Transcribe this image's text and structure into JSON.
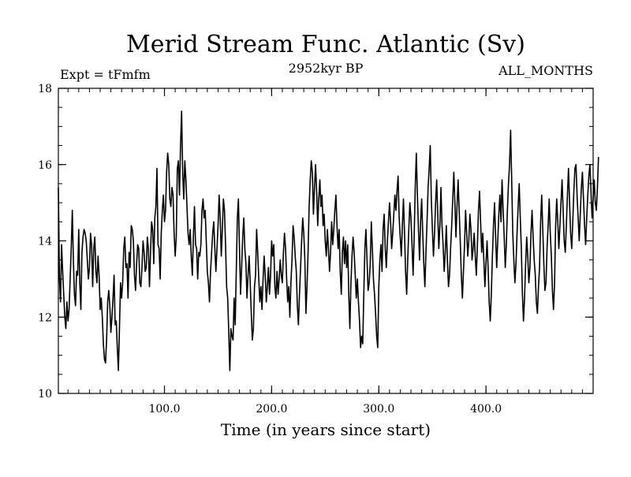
{
  "chart_data": {
    "type": "line",
    "title": "Merid Stream Func. Atlantic (Sv)",
    "subtitle_left": "Expt = tFmfm",
    "subtitle_center": "2952kyr BP",
    "subtitle_right": "ALL_MONTHS",
    "xlabel": "Time (in years since start)",
    "ylabel": "",
    "xlim": [
      1,
      500
    ],
    "ylim": [
      10,
      18
    ],
    "x_ticks": [
      100,
      200,
      300,
      400
    ],
    "x_tick_labels": [
      "100.0",
      "200.0",
      "300.0",
      "400.0"
    ],
    "y_ticks": [
      10,
      12,
      14,
      16,
      18
    ],
    "y_tick_labels": [
      "10",
      "12",
      "14",
      "16",
      "18"
    ],
    "grid": false,
    "series": [
      {
        "name": "Merid Stream Func. Atlantic",
        "x_start": 1,
        "x_step": 1,
        "values": [
          15.4,
          13.0,
          12.4,
          13.9,
          13.2,
          12.6,
          12.0,
          11.7,
          12.4,
          11.9,
          12.2,
          13.0,
          13.8,
          14.8,
          13.5,
          12.6,
          12.3,
          13.2,
          13.1,
          14.3,
          12.9,
          12.2,
          13.7,
          14.1,
          14.3,
          14.2,
          14.0,
          13.5,
          13.0,
          13.3,
          14.2,
          13.9,
          12.8,
          13.8,
          14.1,
          13.2,
          12.9,
          13.6,
          13.1,
          12.2,
          12.5,
          12.0,
          11.3,
          10.9,
          10.8,
          11.4,
          12.4,
          12.7,
          12.3,
          11.6,
          12.0,
          12.5,
          13.1,
          11.8,
          11.9,
          11.2,
          10.6,
          11.7,
          12.9,
          12.5,
          12.9,
          13.8,
          14.1,
          13.3,
          13.4,
          12.5,
          13.7,
          13.3,
          14.4,
          14.3,
          14.0,
          13.1,
          12.7,
          13.4,
          13.9,
          13.8,
          12.9,
          12.8,
          13.3,
          14.0,
          13.7,
          13.2,
          13.3,
          14.1,
          13.8,
          12.8,
          13.7,
          14.5,
          14.3,
          13.4,
          14.6,
          14.9,
          15.9,
          13.9,
          13.8,
          13.0,
          14.2,
          14.8,
          15.2,
          14.5,
          14.8,
          15.8,
          16.3,
          16.0,
          15.1,
          14.9,
          15.4,
          15.2,
          14.2,
          13.6,
          14.1,
          15.9,
          16.1,
          15.2,
          16.5,
          17.4,
          15.8,
          15.1,
          16.1,
          15.6,
          14.9,
          14.2,
          13.9,
          14.3,
          13.6,
          13.1,
          14.1,
          14.9,
          13.9,
          13.8,
          13.0,
          13.7,
          13.6,
          13.9,
          14.8,
          15.1,
          14.6,
          14.8,
          14.0,
          13.2,
          12.9,
          12.4,
          13.2,
          13.7,
          14.2,
          14.5,
          13.8,
          13.2,
          13.8,
          14.4,
          15.2,
          14.6,
          13.6,
          14.3,
          15.1,
          14.8,
          13.9,
          12.8,
          12.5,
          11.6,
          10.6,
          11.7,
          11.5,
          11.4,
          12.5,
          11.8,
          13.2,
          14.6,
          15.1,
          13.8,
          12.6,
          13.3,
          14.1,
          14.6,
          13.8,
          13.4,
          12.5,
          13.1,
          13.6,
          12.9,
          12.1,
          11.4,
          11.7,
          12.8,
          13.1,
          14.3,
          13.7,
          13.0,
          12.4,
          12.8,
          12.2,
          13.0,
          13.6,
          13.1,
          12.4,
          12.8,
          13.3,
          12.6,
          13.1,
          14.0,
          13.6,
          13.9,
          12.8,
          12.5,
          13.2,
          12.6,
          13.0,
          13.5,
          13.1,
          12.9,
          13.7,
          14.2,
          13.8,
          13.0,
          12.4,
          12.8,
          12.0,
          12.9,
          13.5,
          14.4,
          14.1,
          13.6,
          13.2,
          12.3,
          11.8,
          12.6,
          13.3,
          14.0,
          14.6,
          14.2,
          13.5,
          12.1,
          12.8,
          13.7,
          14.9,
          15.6,
          16.1,
          15.8,
          14.7,
          15.4,
          16.0,
          15.3,
          14.4,
          15.1,
          15.6,
          14.9,
          15.2,
          14.4,
          14.7,
          14.0,
          13.6,
          14.3,
          13.8,
          13.2,
          13.7,
          14.5,
          13.9,
          14.3,
          14.8,
          15.2,
          14.4,
          13.8,
          14.3,
          13.2,
          12.6,
          13.7,
          14.1,
          13.4,
          14.0,
          13.3,
          13.9,
          12.6,
          11.7,
          12.9,
          13.6,
          14.1,
          13.7,
          13.1,
          12.5,
          13.0,
          12.4,
          11.9,
          11.2,
          11.5,
          11.3,
          12.6,
          13.8,
          14.3,
          13.5,
          12.7,
          12.9,
          13.4,
          14.5,
          13.8,
          13.0,
          12.6,
          12.1,
          11.5,
          11.2,
          12.8,
          13.5,
          13.9,
          13.2,
          14.3,
          14.7,
          13.8,
          13.3,
          14.0,
          14.5,
          15.0,
          14.5,
          13.8,
          14.2,
          14.7,
          15.2,
          14.8,
          15.3,
          15.7,
          14.6,
          14.1,
          13.6,
          14.4,
          15.1,
          14.2,
          13.2,
          12.6,
          13.5,
          14.3,
          15.0,
          14.6,
          13.9,
          13.1,
          14.1,
          15.4,
          16.3,
          15.2,
          14.3,
          13.5,
          14.5,
          15.1,
          14.2,
          13.4,
          12.8,
          13.7,
          14.5,
          15.4,
          15.9,
          16.5,
          15.1,
          14.3,
          13.6,
          14.2,
          15.0,
          15.6,
          14.7,
          13.8,
          14.4,
          15.4,
          14.4,
          13.9,
          13.2,
          13.7,
          14.4,
          13.5,
          12.8,
          13.1,
          13.8,
          14.4,
          15.1,
          15.8,
          15.0,
          14.1,
          14.9,
          15.6,
          14.8,
          14.0,
          13.1,
          12.5,
          13.2,
          13.9,
          14.8,
          14.2,
          13.6,
          14.0,
          14.7,
          14.3,
          13.5,
          13.8,
          14.2,
          13.6,
          13.1,
          13.9,
          14.8,
          15.3,
          14.5,
          13.7,
          14.2,
          13.5,
          12.8,
          13.4,
          14.0,
          13.3,
          12.4,
          11.9,
          12.6,
          13.6,
          14.4,
          15.0,
          14.1,
          13.3,
          14.0,
          14.7,
          15.2,
          14.5,
          15.6,
          14.8,
          14.1,
          13.3,
          13.9,
          14.8,
          15.5,
          16.0,
          16.9,
          15.6,
          14.2,
          13.5,
          12.9,
          13.4,
          14.2,
          14.9,
          15.5,
          14.6,
          13.8,
          12.6,
          11.9,
          12.5,
          13.4,
          14.1,
          13.6,
          12.9,
          13.3,
          14.2,
          14.8,
          14.1,
          13.5,
          13.1,
          12.4,
          12.1,
          12.8,
          13.3,
          14.5,
          15.2,
          14.3,
          13.4,
          12.7,
          12.9,
          13.8,
          14.4,
          15.1,
          14.2,
          13.6,
          12.7,
          12.2,
          12.9,
          14.4,
          15.1,
          14.5,
          13.8,
          14.4,
          15.0,
          15.6,
          14.8,
          14.0,
          13.7,
          14.4,
          15.2,
          15.9,
          15.0,
          14.2,
          13.8,
          14.5,
          15.3,
          15.9,
          16.0,
          15.2,
          14.6,
          14.0,
          14.7,
          15.4,
          15.8,
          15.1,
          14.4,
          13.9,
          14.6,
          15.2,
          15.7,
          16.0,
          15.3,
          14.6,
          15.1,
          15.6,
          15.0,
          14.8,
          15.4,
          16.2
        ]
      }
    ]
  }
}
